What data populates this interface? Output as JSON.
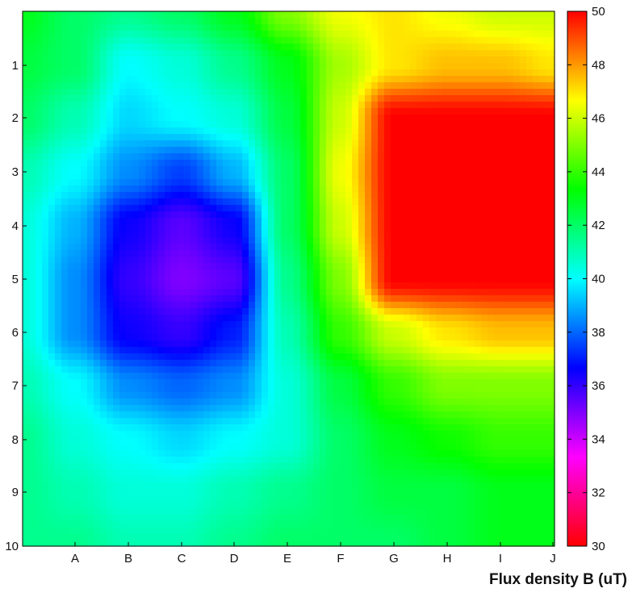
{
  "chart_data": {
    "type": "heatmap",
    "title": "",
    "caption": "Flux density B (uT)",
    "x_categories": [
      "A",
      "B",
      "C",
      "D",
      "E",
      "F",
      "G",
      "H",
      "I",
      "J"
    ],
    "y_categories": [
      "1",
      "2",
      "3",
      "4",
      "5",
      "6",
      "7",
      "8",
      "9",
      "10"
    ],
    "colorbar": {
      "min": 30,
      "max": 50,
      "ticks": [
        30,
        32,
        34,
        36,
        38,
        40,
        42,
        44,
        46,
        48,
        50
      ],
      "colormap": "hsv-reversed (red-yellow-green-cyan-blue-magenta-red)"
    },
    "grid_rows_top_to_bottom": [
      [
        43.0,
        42.0,
        41.5,
        42.0,
        43.0,
        45.0,
        46.5,
        47.0,
        46.5,
        46.0,
        46.0
      ],
      [
        42.5,
        42.0,
        40.0,
        40.5,
        41.5,
        43.0,
        45.5,
        47.0,
        47.5,
        47.5,
        47.0
      ],
      [
        42.0,
        41.0,
        39.5,
        40.0,
        40.5,
        42.5,
        46.0,
        50.0,
        50.0,
        50.0,
        50.0
      ],
      [
        41.0,
        40.0,
        38.5,
        37.5,
        39.0,
        42.0,
        46.5,
        50.0,
        50.0,
        50.0,
        50.0
      ],
      [
        40.5,
        39.0,
        36.5,
        35.5,
        36.5,
        42.0,
        46.0,
        50.0,
        50.0,
        50.0,
        50.0
      ],
      [
        40.5,
        38.5,
        36.0,
        35.0,
        35.5,
        41.5,
        45.0,
        50.0,
        50.0,
        50.0,
        50.0
      ],
      [
        40.5,
        38.5,
        36.5,
        36.0,
        37.0,
        41.0,
        44.0,
        46.0,
        47.0,
        47.5,
        47.5
      ],
      [
        41.0,
        40.0,
        38.5,
        38.0,
        38.5,
        40.5,
        42.5,
        44.0,
        45.0,
        45.0,
        45.0
      ],
      [
        41.5,
        40.5,
        40.0,
        39.5,
        40.0,
        40.5,
        42.0,
        43.0,
        43.5,
        44.0,
        44.0
      ],
      [
        41.5,
        41.0,
        40.5,
        40.5,
        41.0,
        41.5,
        42.0,
        42.5,
        42.5,
        43.0,
        43.0
      ],
      [
        41.5,
        41.5,
        41.0,
        41.0,
        41.5,
        42.0,
        42.0,
        42.0,
        42.5,
        43.0,
        43.0
      ]
    ],
    "grid_note_x": "columns: plot left edge, A, B, C, D, E, F, G, H, I, J",
    "grid_note_y": "rows: plot top edge, 1, 2, 3, 4, 5, 6, 7, 8, 9, 10",
    "grid": false,
    "legend": "colorbar-right"
  }
}
